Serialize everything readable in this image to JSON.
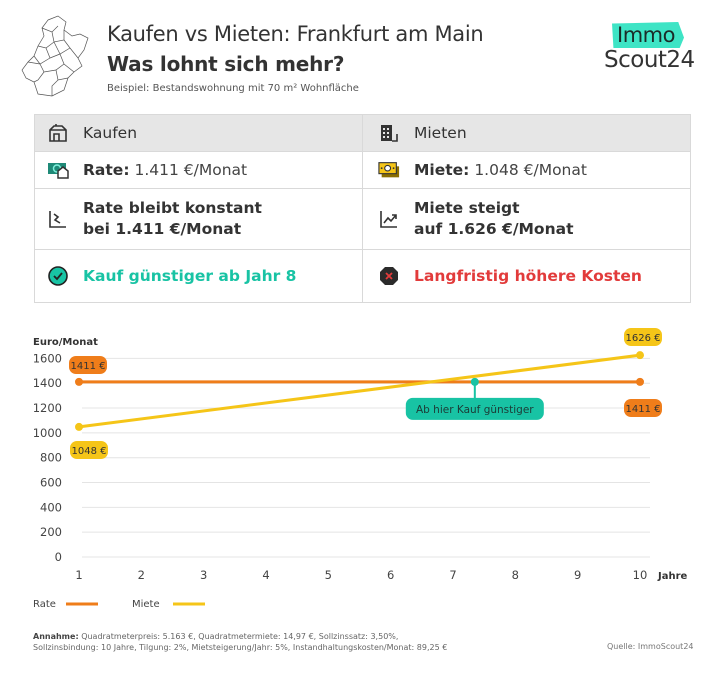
{
  "header": {
    "title": "Kaufen vs Mieten: Frankfurt am Main",
    "subtitle": "Was lohnt sich mehr?",
    "note": "Beispiel: Bestandswohnung mit 70 m² Wohnfläche"
  },
  "logo": {
    "line1": "Immo",
    "line2": "Scout24",
    "accent": "#3ee4c5"
  },
  "table": {
    "kaufen": {
      "header": "Kaufen",
      "header_icon": "house-icon",
      "rate_label": "Rate:",
      "rate_value": "1.411 €/Monat",
      "rate_icon": "money-house-icon",
      "trend_line1": "Rate bleibt konstant",
      "trend_line2": "bei 1.411 €/Monat",
      "trend_icon": "flat-chart-icon",
      "verdict": "Kauf günstiger ab Jahr 8",
      "verdict_icon": "check-circle-icon",
      "verdict_color": "#18c3a4"
    },
    "mieten": {
      "header": "Mieten",
      "header_icon": "building-icon",
      "rate_label": "Miete:",
      "rate_value": "1.048 €/Monat",
      "rate_icon": "banknote-icon",
      "trend_line1": "Miete steigt",
      "trend_line2": "auf 1.626 €/Monat",
      "trend_icon": "rising-chart-icon",
      "verdict": "Langfristig höhere Kosten",
      "verdict_icon": "x-octagon-icon",
      "verdict_color": "#e23b3b"
    }
  },
  "chart_data": {
    "type": "line",
    "ylabel": "Euro/Monat",
    "xlabel": "Jahre",
    "x": [
      1,
      10
    ],
    "xticks": [
      "1",
      "2",
      "3",
      "4",
      "5",
      "6",
      "7",
      "8",
      "9",
      "10"
    ],
    "yticks": [
      "0",
      "200",
      "400",
      "600",
      "800",
      "1000",
      "1200",
      "1400",
      "1600"
    ],
    "ylim": [
      0,
      1700
    ],
    "xlim": [
      1,
      10
    ],
    "grid": true,
    "series": [
      {
        "name": "Rate",
        "color": "#ef7d1a",
        "x": [
          1,
          10
        ],
        "values": [
          1411,
          1411
        ],
        "labels": [
          "1411 €",
          "1411 €"
        ]
      },
      {
        "name": "Miete",
        "color": "#f5c518",
        "x": [
          1,
          10
        ],
        "values": [
          1048,
          1626
        ],
        "labels": [
          "1048 €",
          "1626 €"
        ]
      }
    ],
    "annotation": {
      "text": "Ab hier Kauf günstiger",
      "x": 7.35,
      "y": 1411,
      "color": "#18c3a4"
    },
    "legend": "bottom-left"
  },
  "footer": {
    "assumption_label": "Annahme:",
    "assumption_line1": "Quadratmeterpreis: 5.163 €, Quadratmetermiete: 14,97 €,  Sollzinssatz: 3,50%,",
    "assumption_line2": "Sollzinsbindung: 10 Jahre, Tilgung: 2%, Mietsteigerung/Jahr: 5%, Instandhaltungskosten/Monat: 89,25 €",
    "source": "Quelle: ImmoScout24"
  }
}
